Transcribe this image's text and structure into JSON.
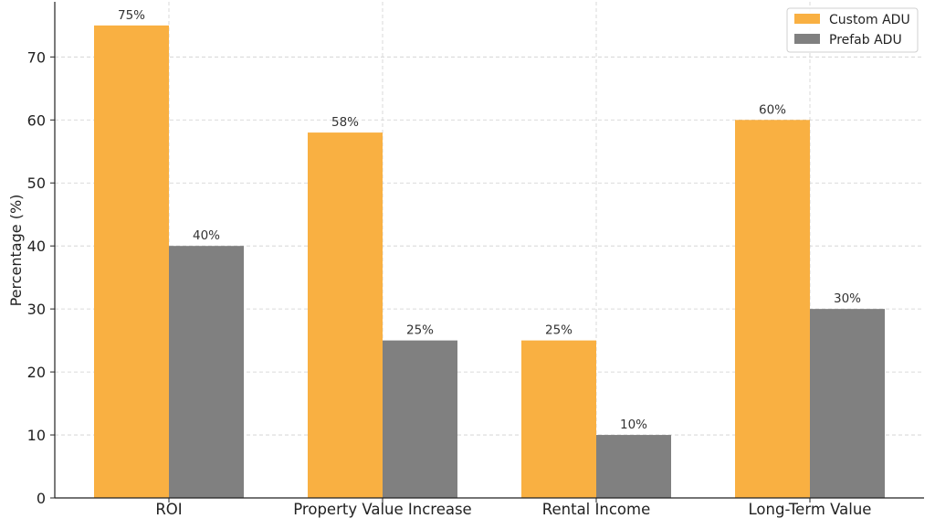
{
  "chart_data": {
    "type": "bar",
    "categories": [
      "ROI",
      "Property Value Increase",
      "Rental Income",
      "Long-Term Value"
    ],
    "series": [
      {
        "name": "Custom ADU",
        "values": [
          75,
          58,
          25,
          60
        ],
        "labels": [
          "75%",
          "58%",
          "25%",
          "60%"
        ],
        "color": "#F9B042"
      },
      {
        "name": "Prefab ADU",
        "values": [
          40,
          25,
          10,
          30
        ],
        "labels": [
          "40%",
          "25%",
          "10%",
          "30%"
        ],
        "color": "#808080"
      }
    ],
    "ylabel": "Percentage (%)",
    "ylim": [
      0,
      78.75
    ],
    "yticks": [
      0,
      10,
      20,
      30,
      40,
      50,
      60,
      70
    ],
    "grid": true,
    "legend": "top-right"
  }
}
